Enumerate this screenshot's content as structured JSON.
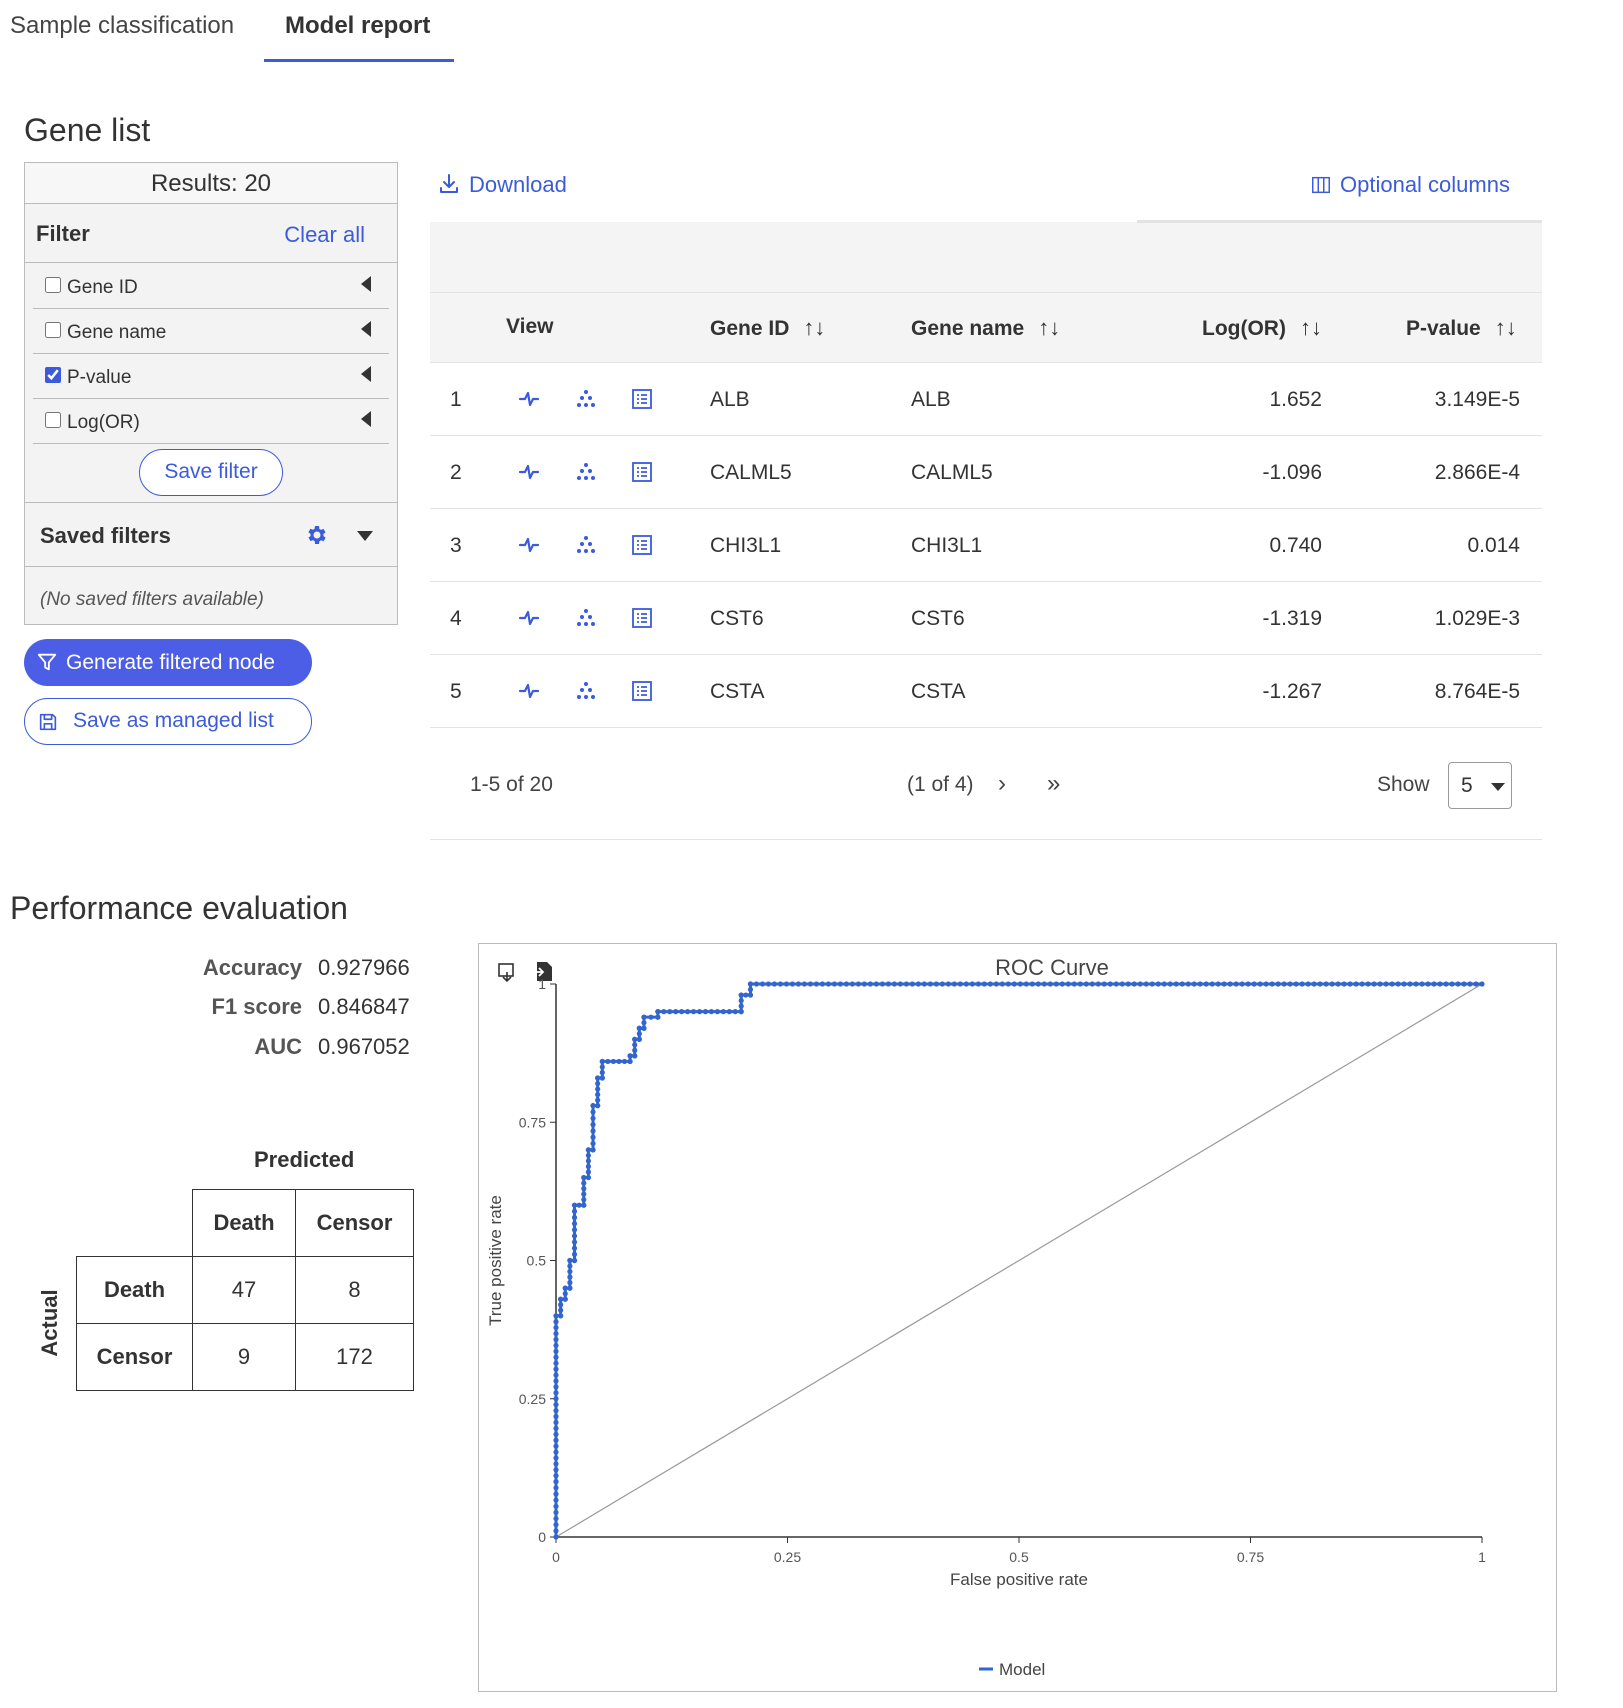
{
  "tabs": [
    {
      "label": "Sample classification",
      "active": false
    },
    {
      "label": "Model report",
      "active": true
    }
  ],
  "gene_list": {
    "title": "Gene list",
    "results_label": "Results: 20",
    "filter": {
      "label": "Filter",
      "clear_all": "Clear all",
      "items": [
        {
          "label": "Gene ID",
          "checked": false
        },
        {
          "label": "Gene name",
          "checked": false
        },
        {
          "label": "P-value",
          "checked": true
        },
        {
          "label": "Log(OR)",
          "checked": false
        }
      ],
      "save_filter": "Save filter"
    },
    "saved_filters": {
      "label": "Saved filters",
      "empty_text": "(No saved filters available)"
    },
    "generate_button": "Generate filtered node",
    "save_managed_button": "Save as managed list"
  },
  "table": {
    "download": "Download",
    "optional_columns": "Optional columns",
    "headers": {
      "view": "View",
      "gene_id": "Gene ID",
      "gene_name": "Gene name",
      "log_or": "Log(OR)",
      "p_value": "P-value"
    },
    "rows": [
      {
        "index": "1",
        "gene_id": "ALB",
        "gene_name": "ALB",
        "log_or": "1.652",
        "p_value": "3.149E-5"
      },
      {
        "index": "2",
        "gene_id": "CALML5",
        "gene_name": "CALML5",
        "log_or": "-1.096",
        "p_value": "2.866E-4"
      },
      {
        "index": "3",
        "gene_id": "CHI3L1",
        "gene_name": "CHI3L1",
        "log_or": "0.740",
        "p_value": "0.014"
      },
      {
        "index": "4",
        "gene_id": "CST6",
        "gene_name": "CST6",
        "log_or": "-1.319",
        "p_value": "1.029E-3"
      },
      {
        "index": "5",
        "gene_id": "CSTA",
        "gene_name": "CSTA",
        "log_or": "-1.267",
        "p_value": "8.764E-5"
      }
    ],
    "pager": {
      "range": "1-5 of 20",
      "page": "(1 of 4)",
      "next": "›",
      "last": "»",
      "show_label": "Show",
      "show_value": "5"
    }
  },
  "performance": {
    "title": "Performance evaluation",
    "metrics": [
      {
        "label": "Accuracy",
        "value": "0.927966"
      },
      {
        "label": "F1 score",
        "value": "0.846847"
      },
      {
        "label": "AUC",
        "value": "0.967052"
      }
    ],
    "confusion": {
      "predicted_label": "Predicted",
      "actual_label": "Actual",
      "col_headers": [
        "Death",
        "Censor"
      ],
      "row_headers": [
        "Death",
        "Censor"
      ],
      "values": [
        [
          "47",
          "8"
        ],
        [
          "9",
          "172"
        ]
      ]
    }
  },
  "chart_data": {
    "type": "line",
    "title": "ROC Curve",
    "xlabel": "False positive rate",
    "ylabel": "True positive rate",
    "xlim": [
      0,
      1
    ],
    "ylim": [
      0,
      1
    ],
    "x_ticks": [
      "0",
      "0.25",
      "0.5",
      "0.75",
      "1"
    ],
    "y_ticks": [
      "0",
      "0.25",
      "0.5",
      "0.75",
      "1"
    ],
    "legend_position": "bottom",
    "colors": {
      "model": "#3366cc",
      "diagonal": "#999999"
    },
    "series": [
      {
        "name": "Model",
        "x": [
          0,
          0,
          0,
          0.005,
          0.005,
          0.01,
          0.01,
          0.015,
          0.015,
          0.02,
          0.02,
          0.03,
          0.03,
          0.035,
          0.035,
          0.04,
          0.04,
          0.045,
          0.045,
          0.05,
          0.05,
          0.08,
          0.08,
          0.085,
          0.085,
          0.09,
          0.09,
          0.095,
          0.095,
          0.11,
          0.11,
          0.2,
          0.2,
          0.21,
          0.21,
          1
        ],
        "y": [
          0,
          0.1,
          0.4,
          0.4,
          0.43,
          0.43,
          0.45,
          0.45,
          0.5,
          0.5,
          0.6,
          0.6,
          0.65,
          0.65,
          0.7,
          0.7,
          0.78,
          0.78,
          0.83,
          0.83,
          0.86,
          0.86,
          0.87,
          0.87,
          0.9,
          0.9,
          0.92,
          0.92,
          0.94,
          0.94,
          0.95,
          0.95,
          0.98,
          0.98,
          1,
          1
        ]
      },
      {
        "name": "",
        "x": [
          0,
          1
        ],
        "y": [
          0,
          1
        ]
      }
    ]
  },
  "icons": [
    "download-icon",
    "columns-icon",
    "filter-icon",
    "save-icon",
    "gear-icon",
    "pathway-icon",
    "scatter-icon",
    "list-icon",
    "export-image-icon",
    "export-data-icon"
  ]
}
